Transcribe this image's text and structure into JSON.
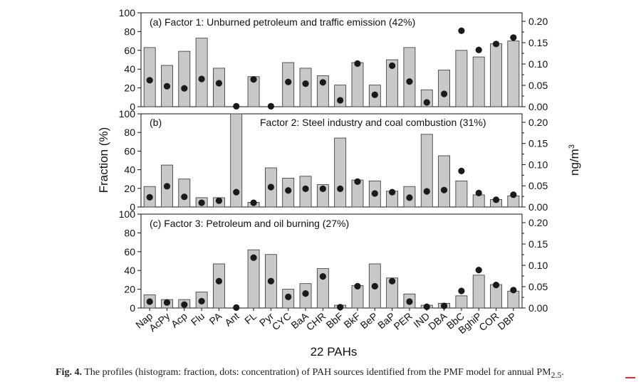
{
  "chart_data": {
    "type": "bar",
    "categories": [
      "Nap",
      "AcPy",
      "Acp",
      "Flu",
      "PA",
      "Ant",
      "FL",
      "Pyr",
      "CYC",
      "BaA",
      "CHR",
      "BbF",
      "BkF",
      "BeP",
      "BaP",
      "PER",
      "IND",
      "DBA",
      "BbC",
      "BghiP",
      "COR",
      "DBP"
    ],
    "xlabel": "22 PAHs",
    "ylabel_left": "Fraction (%)",
    "ylabel_right": "ng/m",
    "ylabel_right_sup": "3",
    "ylim_left": [
      0,
      100
    ],
    "yticks_left": [
      0,
      20,
      40,
      60,
      80,
      100
    ],
    "ylim_right": [
      0,
      0.22
    ],
    "yticks_right": [
      "0.00",
      "0.05",
      "0.10",
      "0.15",
      "0.20"
    ],
    "bar_color": "#c8c8c8",
    "dot_color": "#1a1a1a",
    "panels": [
      {
        "title": "(a) Factor 1: Unburned petroleum and traffic emission (42%)",
        "fraction": [
          63,
          44,
          59,
          73,
          41,
          0,
          32,
          0,
          47,
          41,
          33,
          23,
          47,
          23,
          50,
          63,
          18,
          39,
          60,
          53,
          67,
          70
        ],
        "concentration": [
          0.062,
          0.048,
          0.043,
          0.065,
          0.055,
          0.001,
          0.064,
          0.001,
          0.058,
          0.054,
          0.057,
          0.015,
          0.101,
          0.028,
          0.096,
          0.059,
          0.01,
          0.03,
          0.178,
          0.133,
          0.147,
          0.162
        ]
      },
      {
        "title_id": "(b)",
        "title": "Factor 2: Steel industry and coal combustion (31%)",
        "fraction": [
          22,
          45,
          30,
          10,
          10,
          100,
          5,
          42,
          31,
          33,
          24,
          74,
          29,
          28,
          17,
          22,
          78,
          55,
          28,
          13,
          8,
          12
        ],
        "concentration": [
          0.023,
          0.049,
          0.024,
          0.01,
          0.015,
          0.035,
          0.01,
          0.047,
          0.039,
          0.043,
          0.043,
          0.043,
          0.06,
          0.032,
          0.035,
          0.022,
          0.037,
          0.04,
          0.085,
          0.033,
          0.017,
          0.029
        ]
      },
      {
        "title": "(c) Factor 3: Petroleum and oil burning (27%)",
        "fraction": [
          14,
          9,
          9,
          17,
          47,
          0,
          62,
          57,
          20,
          26,
          42,
          3,
          24,
          47,
          32,
          15,
          3,
          5,
          13,
          35,
          25,
          18
        ],
        "concentration": [
          0.015,
          0.013,
          0.008,
          0.016,
          0.063,
          0.001,
          0.118,
          0.063,
          0.026,
          0.034,
          0.074,
          0.002,
          0.051,
          0.051,
          0.063,
          0.015,
          0.003,
          0.005,
          0.04,
          0.089,
          0.054,
          0.042
        ]
      }
    ]
  },
  "caption": {
    "label": "Fig. 4.",
    "text": "The profiles (histogram: fraction, dots: concentration) of PAH sources identified from the PMF model for annual PM",
    "sub": "2.5",
    "end": "."
  }
}
